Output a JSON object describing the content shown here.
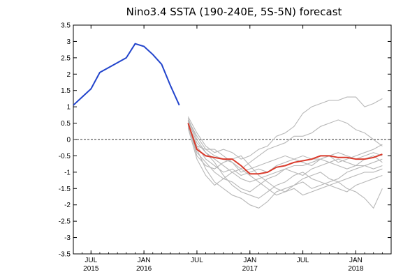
{
  "chart_data": {
    "type": "line",
    "title": "Nino3.4 SSTA (190-240E, 5S-5N) forecast",
    "xlabel": "",
    "ylabel": "",
    "ylim": [
      -3.5,
      3.5
    ],
    "yticks": [
      3.5,
      3,
      2.5,
      2,
      1.5,
      1,
      0.5,
      0,
      -0.5,
      -1,
      -1.5,
      -2,
      -2.5,
      -3,
      -3.5
    ],
    "xlim": [
      "2015-05",
      "2018-05"
    ],
    "xticks": [
      {
        "x": "2015-07",
        "month": "JUL",
        "year": "2015"
      },
      {
        "x": "2016-01",
        "month": "JAN",
        "year": "2016"
      },
      {
        "x": "2016-07",
        "month": "JUL",
        "year": ""
      },
      {
        "x": "2017-01",
        "month": "JAN",
        "year": "2017"
      },
      {
        "x": "2017-07",
        "month": "JUL",
        "year": ""
      },
      {
        "x": "2018-01",
        "month": "JAN",
        "year": "2018"
      }
    ],
    "zero_line": {
      "y": 0,
      "style": "dashed"
    },
    "grid": false,
    "colors": {
      "observed": "#2244cc",
      "ensemble_mean": "#d93a2b",
      "members": "#b8b8b8",
      "zero_line": "#333333"
    },
    "observed": {
      "x": [
        "2015-05",
        "2015-06",
        "2015-07",
        "2015-08",
        "2015-09",
        "2015-10",
        "2015-11",
        "2015-12",
        "2016-01",
        "2016-02",
        "2016-03",
        "2016-04",
        "2016-05"
      ],
      "y": [
        1.05,
        1.3,
        1.55,
        2.05,
        2.2,
        2.35,
        2.5,
        2.93,
        2.85,
        2.6,
        2.3,
        1.65,
        1.05
      ]
    },
    "forecast_x": [
      "2016-06",
      "2016-07",
      "2016-08",
      "2016-09",
      "2016-10",
      "2016-11",
      "2016-12",
      "2017-01",
      "2017-02",
      "2017-03",
      "2017-04",
      "2017-05",
      "2017-06",
      "2017-07",
      "2017-08",
      "2017-09",
      "2017-10",
      "2017-11",
      "2017-12",
      "2018-01",
      "2018-02",
      "2018-03",
      "2018-04"
    ],
    "ensemble_mean": [
      0.5,
      -0.3,
      -0.5,
      -0.55,
      -0.6,
      -0.6,
      -0.8,
      -1.05,
      -1.05,
      -1.0,
      -0.85,
      -0.8,
      -0.7,
      -0.65,
      -0.6,
      -0.5,
      -0.5,
      -0.55,
      -0.55,
      -0.6,
      -0.6,
      -0.55,
      -0.45
    ],
    "members": [
      [
        0.7,
        0.2,
        -0.2,
        -0.4,
        -0.3,
        -0.4,
        -0.6,
        -0.5,
        -0.3,
        -0.2,
        0.1,
        0.2,
        0.4,
        0.8,
        1.0,
        1.1,
        1.2,
        1.2,
        1.3,
        1.3,
        1.0,
        1.1,
        1.25
      ],
      [
        0.6,
        0.1,
        -0.3,
        -0.5,
        -0.6,
        -0.7,
        -0.9,
        -0.7,
        -0.5,
        -0.3,
        -0.2,
        -0.1,
        0.1,
        0.1,
        0.2,
        0.4,
        0.5,
        0.6,
        0.5,
        0.3,
        0.2,
        0.0,
        -0.2
      ],
      [
        0.5,
        -0.2,
        -0.6,
        -0.8,
        -1.0,
        -0.9,
        -1.1,
        -1.0,
        -0.9,
        -1.0,
        -0.8,
        -0.7,
        -0.6,
        -0.5,
        -0.6,
        -0.6,
        -0.5,
        -0.7,
        -0.6,
        -0.5,
        -0.4,
        -0.3,
        -0.15
      ],
      [
        0.4,
        -0.4,
        -0.7,
        -1.0,
        -1.2,
        -1.3,
        -1.5,
        -1.6,
        -1.4,
        -1.2,
        -1.1,
        -0.9,
        -0.8,
        -0.8,
        -0.7,
        -0.6,
        -0.7,
        -0.8,
        -0.9,
        -0.8,
        -0.6,
        -0.5,
        -0.7
      ],
      [
        0.55,
        -0.3,
        -0.9,
        -1.3,
        -1.5,
        -1.7,
        -1.8,
        -2.0,
        -2.1,
        -1.9,
        -1.6,
        -1.5,
        -1.4,
        -1.2,
        -1.1,
        -1.0,
        -1.2,
        -1.3,
        -1.5,
        -1.6,
        -1.8,
        -2.1,
        -1.5
      ],
      [
        0.45,
        -0.5,
        -0.8,
        -0.9,
        -0.7,
        -0.6,
        -0.5,
        -0.8,
        -1.1,
        -1.3,
        -1.5,
        -1.6,
        -1.4,
        -1.3,
        -1.5,
        -1.4,
        -1.3,
        -1.2,
        -1.0,
        -0.9,
        -0.8,
        -0.9,
        -0.8
      ],
      [
        0.6,
        -0.1,
        -0.4,
        -0.6,
        -0.8,
        -1.0,
        -1.2,
        -1.3,
        -1.2,
        -1.1,
        -1.0,
        -0.9,
        -1.0,
        -1.1,
        -0.9,
        -0.8,
        -0.7,
        -0.6,
        -0.7,
        -0.8,
        -0.8,
        -0.7,
        -0.6
      ],
      [
        0.35,
        -0.6,
        -1.1,
        -1.4,
        -1.2,
        -1.0,
        -0.9,
        -1.1,
        -1.3,
        -1.5,
        -1.7,
        -1.6,
        -1.5,
        -1.7,
        -1.6,
        -1.5,
        -1.4,
        -1.3,
        -1.2,
        -1.1,
        -1.0,
        -1.0,
        -0.9
      ],
      [
        0.5,
        -0.2,
        -0.3,
        -0.3,
        -0.5,
        -0.7,
        -1.0,
        -0.9,
        -0.8,
        -0.7,
        -0.6,
        -0.5,
        -0.6,
        -0.7,
        -0.8,
        -0.6,
        -0.5,
        -0.4,
        -0.5,
        -0.6,
        -0.5,
        -0.4,
        -0.5
      ],
      [
        0.65,
        0.0,
        -0.4,
        -0.7,
        -1.1,
        -1.4,
        -1.6,
        -1.7,
        -1.8,
        -1.6,
        -1.4,
        -1.3,
        -1.1,
        -1.0,
        -1.2,
        -1.3,
        -1.4,
        -1.5,
        -1.6,
        -1.4,
        -1.3,
        -1.2,
        -1.1
      ]
    ]
  }
}
